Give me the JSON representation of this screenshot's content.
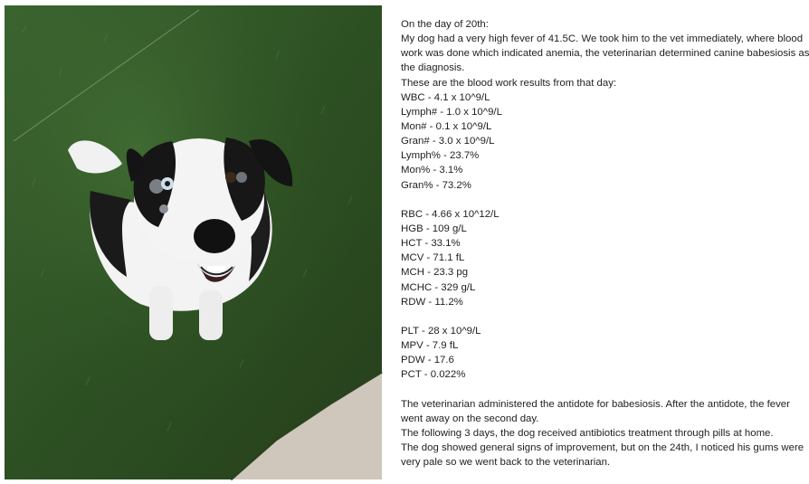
{
  "text": {
    "lines": [
      "On the day of 20th:",
      "My dog had a very high fever of 41.5C. We took him to the vet immediately, where blood",
      "work was done which indicated anemia, the veterinarian determined canine babesiosis as",
      "the diagnosis.",
      "These are the blood work results from that day:",
      "WBC - 4.1 x 10^9/L",
      "Lymph# - 1.0 x 10^9/L",
      "Mon# - 0.1 x 10^9/L",
      "Gran# - 3.0 x 10^9/L",
      "Lymph% - 23.7%",
      "Mon% - 3.1%",
      "Gran% - 73.2%",
      "",
      "RBC - 4.66 x 10^12/L",
      "HGB - 109 g/L",
      "HCT - 33.1%",
      "MCV - 71.1 fL",
      "MCH - 23.3 pg",
      "MCHC - 329 g/L",
      "RDW - 11.2%",
      "",
      "PLT - 28 x 10^9/L",
      "MPV - 7.9 fL",
      "PDW - 17.6",
      "PCT - 0.022%",
      "",
      "The veterinarian administered the antidote for babesiosis. After the antidote, the fever",
      "went away on the second day.",
      "The following 3 days, the dog received antibiotics treatment through pills at home.",
      "The dog showed general signs of improvement, but on the 24th, I noticed his gums were",
      "very pale so we went back to the veterinarian."
    ]
  },
  "colors": {
    "grass": "#2f5224",
    "pavement": "#cfc7bb",
    "text": "#1f1f1f"
  }
}
